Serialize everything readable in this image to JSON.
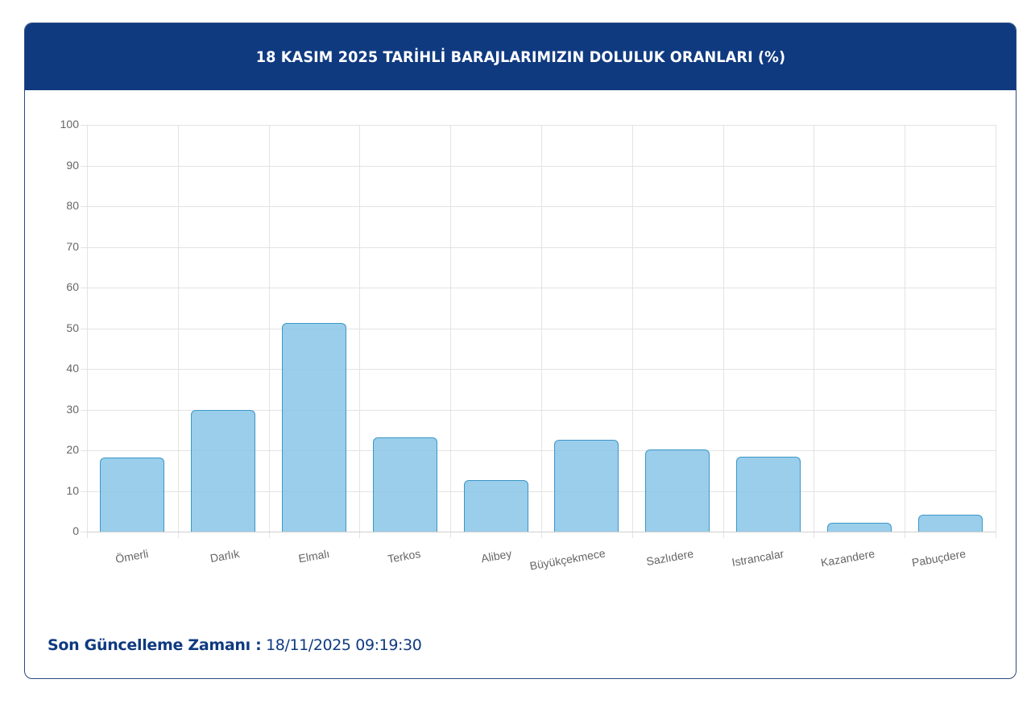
{
  "header": {
    "title": "18 KASIM 2025 TARİHLİ BARAJLARIMIZIN DOLULUK ORANLARI (%)"
  },
  "footer": {
    "label": "Son Güncelleme Zamanı :",
    "value": " 18/11/2025 09:19:30"
  },
  "colors": {
    "header_bg": "#0f3a80",
    "bar_fill": "#88c6e8",
    "bar_border": "#3c97c8",
    "text_dark": "#0f3a80"
  },
  "chart_data": {
    "type": "bar",
    "title": "18 KASIM 2025 TARİHLİ BARAJLARIMIZIN DOLULUK ORANLARI (%)",
    "xlabel": "",
    "ylabel": "",
    "categories": [
      "Ömerli",
      "Darlık",
      "Elmalı",
      "Terkos",
      "Alibey",
      "Büyükçekmece",
      "Sazlıdere",
      "Istrancalar",
      "Kazandere",
      "Pabuçdere"
    ],
    "values": [
      18.2,
      29.9,
      51.3,
      23.2,
      12.7,
      22.6,
      20.2,
      18.4,
      2.2,
      4.2
    ],
    "ylim": [
      0,
      100
    ],
    "yticks": [
      0,
      10,
      20,
      30,
      40,
      50,
      60,
      70,
      80,
      90,
      100
    ],
    "grid": true,
    "legend": null
  }
}
